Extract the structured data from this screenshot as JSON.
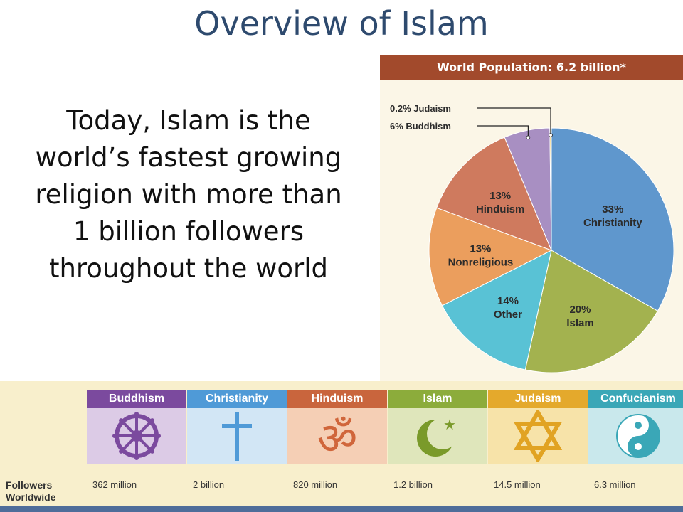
{
  "slide": {
    "title": "Overview of Islam",
    "body_lines": [
      "Today, Islam is the",
      "world’s fastest growing",
      "religion with more than",
      "1 billion followers",
      "throughout the world"
    ]
  },
  "chart_data": {
    "type": "pie",
    "title": "World Population: 6.2 billion*",
    "slices": [
      {
        "label": "Christianity",
        "value": 33,
        "value_label": "33%",
        "color": "#5f97cd"
      },
      {
        "label": "Islam",
        "value": 20,
        "value_label": "20%",
        "color": "#a3b24f"
      },
      {
        "label": "Other",
        "value": 14,
        "value_label": "14%",
        "color": "#59c2d5"
      },
      {
        "label": "Nonreligious",
        "value": 13,
        "value_label": "13%",
        "color": "#eb9e5d"
      },
      {
        "label": "Hinduism",
        "value": 13,
        "value_label": "13%",
        "color": "#cf7a5e"
      },
      {
        "label": "Buddhism",
        "value": 6,
        "value_label": "6%",
        "color": "#a88fc2"
      },
      {
        "label": "Judaism",
        "value": 0.2,
        "value_label": "0.2%",
        "color": "#f4c13f"
      }
    ],
    "callouts": [
      {
        "label": "Judaism",
        "value_label": "0.2%"
      },
      {
        "label": "Buddhism",
        "value_label": "6%"
      }
    ]
  },
  "religions_strip": {
    "followers_label": [
      "Followers",
      "Worldwide"
    ],
    "items": [
      {
        "name": "Buddhism",
        "followers": "362 million",
        "symbol": "dharma-wheel-icon",
        "header_color": "#7b4a9e",
        "bg": "#dccbe6",
        "symbol_color": "#7b4a9e"
      },
      {
        "name": "Christianity",
        "followers": "2 billion",
        "symbol": "cross-icon",
        "header_color": "#4f9ad7",
        "bg": "#d2e6f5",
        "symbol_color": "#4f9ad7"
      },
      {
        "name": "Hinduism",
        "followers": "820 million",
        "symbol": "om-icon",
        "header_color": "#c9653d",
        "bg": "#f5cfb5",
        "symbol_color": "#d0663b"
      },
      {
        "name": "Islam",
        "followers": "1.2 billion",
        "symbol": "crescent-star-icon",
        "header_color": "#8cac3b",
        "bg": "#dfe6bb",
        "symbol_color": "#7a9a2a"
      },
      {
        "name": "Judaism",
        "followers": "14.5 million",
        "symbol": "star-of-david-icon",
        "header_color": "#e4a92c",
        "bg": "#f7e3a9",
        "symbol_color": "#e1a323"
      },
      {
        "name": "Confucianism",
        "followers": "6.3 million",
        "symbol": "yin-yang-icon",
        "header_color": "#3aa7b7",
        "bg": "#c9e8ec",
        "symbol_color": "#3aa7b7"
      }
    ]
  }
}
